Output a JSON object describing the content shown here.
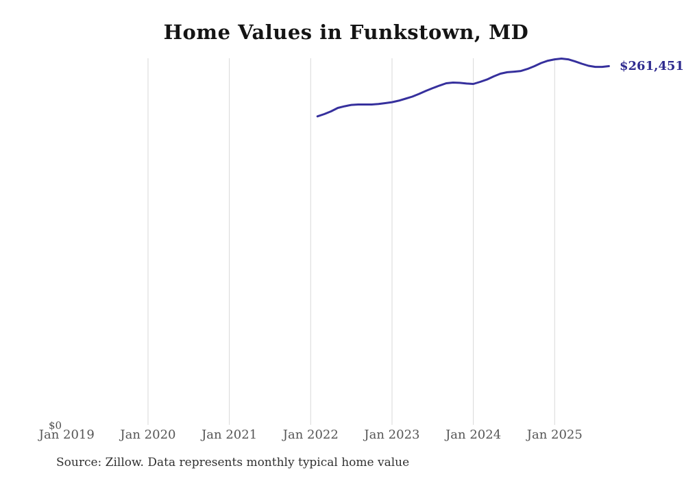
{
  "page": {
    "title": "Home Values in Funkstown, MD",
    "source_note": "Source: Zillow. Data represents monthly typical home value"
  },
  "axes": {
    "y_zero_label": "$0",
    "x_ticks": [
      "Jan 2019",
      "Jan 2020",
      "Jan 2021",
      "Jan 2022",
      "Jan 2023",
      "Jan 2024",
      "Jan 2025"
    ]
  },
  "annotations": {
    "last_value_label": "$261,451"
  },
  "colors": {
    "line": "#36309d",
    "end_label_text": "#2e2a8f",
    "gridline": "#d8d8d8",
    "tick_text": "#555555",
    "title_text": "#141414",
    "source_text": "#303030",
    "background": "#ffffff"
  },
  "chart_data": {
    "type": "line",
    "title": "Home Values in Funkstown, MD",
    "series_name": "Monthly typical home value (USD)",
    "x": [
      "Feb 2022",
      "Mar 2022",
      "Apr 2022",
      "May 2022",
      "Jun 2022",
      "Jul 2022",
      "Aug 2022",
      "Sep 2022",
      "Oct 2022",
      "Nov 2022",
      "Dec 2022",
      "Jan 2023",
      "Feb 2023",
      "Mar 2023",
      "Apr 2023",
      "May 2023",
      "Jun 2023",
      "Jul 2023",
      "Aug 2023",
      "Sep 2023",
      "Oct 2023",
      "Nov 2023",
      "Dec 2023",
      "Jan 2024",
      "Feb 2024",
      "Mar 2024",
      "Apr 2024",
      "May 2024",
      "Jun 2024",
      "Jul 2024",
      "Aug 2024",
      "Sep 2024",
      "Oct 2024",
      "Nov 2024",
      "Dec 2024",
      "Jan 2025",
      "Feb 2025",
      "Mar 2025",
      "Apr 2025",
      "May 2025",
      "Jun 2025",
      "Jul 2025",
      "Aug 2025",
      "Sep 2025"
    ],
    "values": [
      225000,
      226600,
      228600,
      231100,
      232300,
      233300,
      233600,
      233600,
      233600,
      234000,
      234600,
      235300,
      236400,
      237800,
      239300,
      241300,
      243500,
      245500,
      247300,
      249000,
      249500,
      249300,
      248800,
      248500,
      250000,
      251700,
      254000,
      256000,
      257000,
      257400,
      257900,
      259400,
      261400,
      263700,
      265400,
      266400,
      266900,
      266400,
      264900,
      263200,
      261700,
      260900,
      260900,
      261451
    ],
    "last_value": 261451,
    "last_value_label": "$261,451",
    "xlabel": "",
    "ylabel": "",
    "x_axis_tick_labels": [
      "Jan 2019",
      "Jan 2020",
      "Jan 2021",
      "Jan 2022",
      "Jan 2023",
      "Jan 2024",
      "Jan 2025"
    ],
    "ylim": [
      0,
      267000
    ],
    "grid": "vertical gridlines at each January (2020-2025), no horizontal gridlines, no axis lines",
    "legend": "none"
  }
}
